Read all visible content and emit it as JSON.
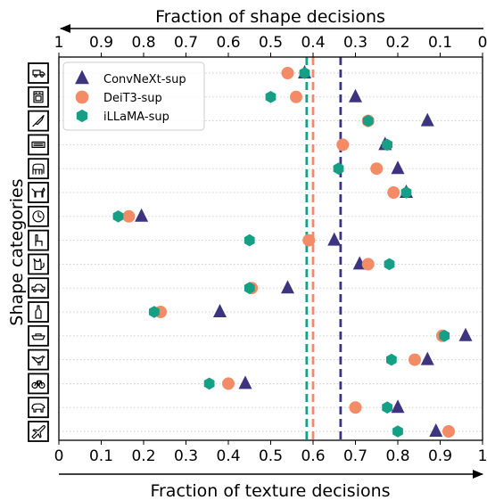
{
  "chart_data": {
    "type": "scatter",
    "xlabel_bottom": "Fraction of texture decisions",
    "xlabel_top": "Fraction of shape decisions",
    "ylabel": "Shape categories",
    "xlim": [
      0,
      1
    ],
    "x_ticks_bottom": [
      "0",
      "0.1",
      "0.2",
      "0.3",
      "0.4",
      "0.5",
      "0.6",
      "0.7",
      "0.8",
      "0.9",
      "1"
    ],
    "x_ticks_top": [
      "1",
      "0.9",
      "0.8",
      "0.7",
      "0.6",
      "0.5",
      "0.4",
      "0.3",
      "0.2",
      "0.1",
      "0"
    ],
    "grid": "horizontal dotted",
    "legend_position": "top-left",
    "categories": [
      "truck",
      "oven",
      "knife",
      "keyboard",
      "elephant",
      "dog",
      "clock",
      "chair",
      "cat",
      "car",
      "bottle",
      "boat",
      "bird",
      "bicycle",
      "bear",
      "airplane"
    ],
    "category_icons": [
      "truck-icon",
      "oven-icon",
      "knife-icon",
      "keyboard-icon",
      "elephant-icon",
      "dog-icon",
      "clock-icon",
      "chair-icon",
      "cat-icon",
      "car-icon",
      "bottle-icon",
      "boat-icon",
      "bird-icon",
      "bicycle-icon",
      "bear-icon",
      "airplane-icon"
    ],
    "series": [
      {
        "name": "ConvNeXt-sup",
        "marker": "triangle",
        "color": "#3d3480",
        "values": [
          0.58,
          0.7,
          0.87,
          0.77,
          0.8,
          0.82,
          0.195,
          0.65,
          0.71,
          0.54,
          0.38,
          0.96,
          0.87,
          0.44,
          0.8,
          0.89
        ],
        "mean": 0.665
      },
      {
        "name": "DeiT3-sup",
        "marker": "circle",
        "color": "#f38c66",
        "values": [
          0.54,
          0.56,
          0.73,
          0.67,
          0.75,
          0.79,
          0.165,
          0.59,
          0.73,
          0.455,
          0.24,
          0.905,
          0.84,
          0.4,
          0.7,
          0.92
        ],
        "mean": 0.6
      },
      {
        "name": "iLLaMA-sup",
        "marker": "hexagon",
        "color": "#159f84",
        "values": [
          0.58,
          0.5,
          0.73,
          0.775,
          0.66,
          0.82,
          0.14,
          0.45,
          0.78,
          0.45,
          0.225,
          0.91,
          0.785,
          0.355,
          0.775,
          0.8
        ],
        "mean": 0.585
      }
    ]
  }
}
